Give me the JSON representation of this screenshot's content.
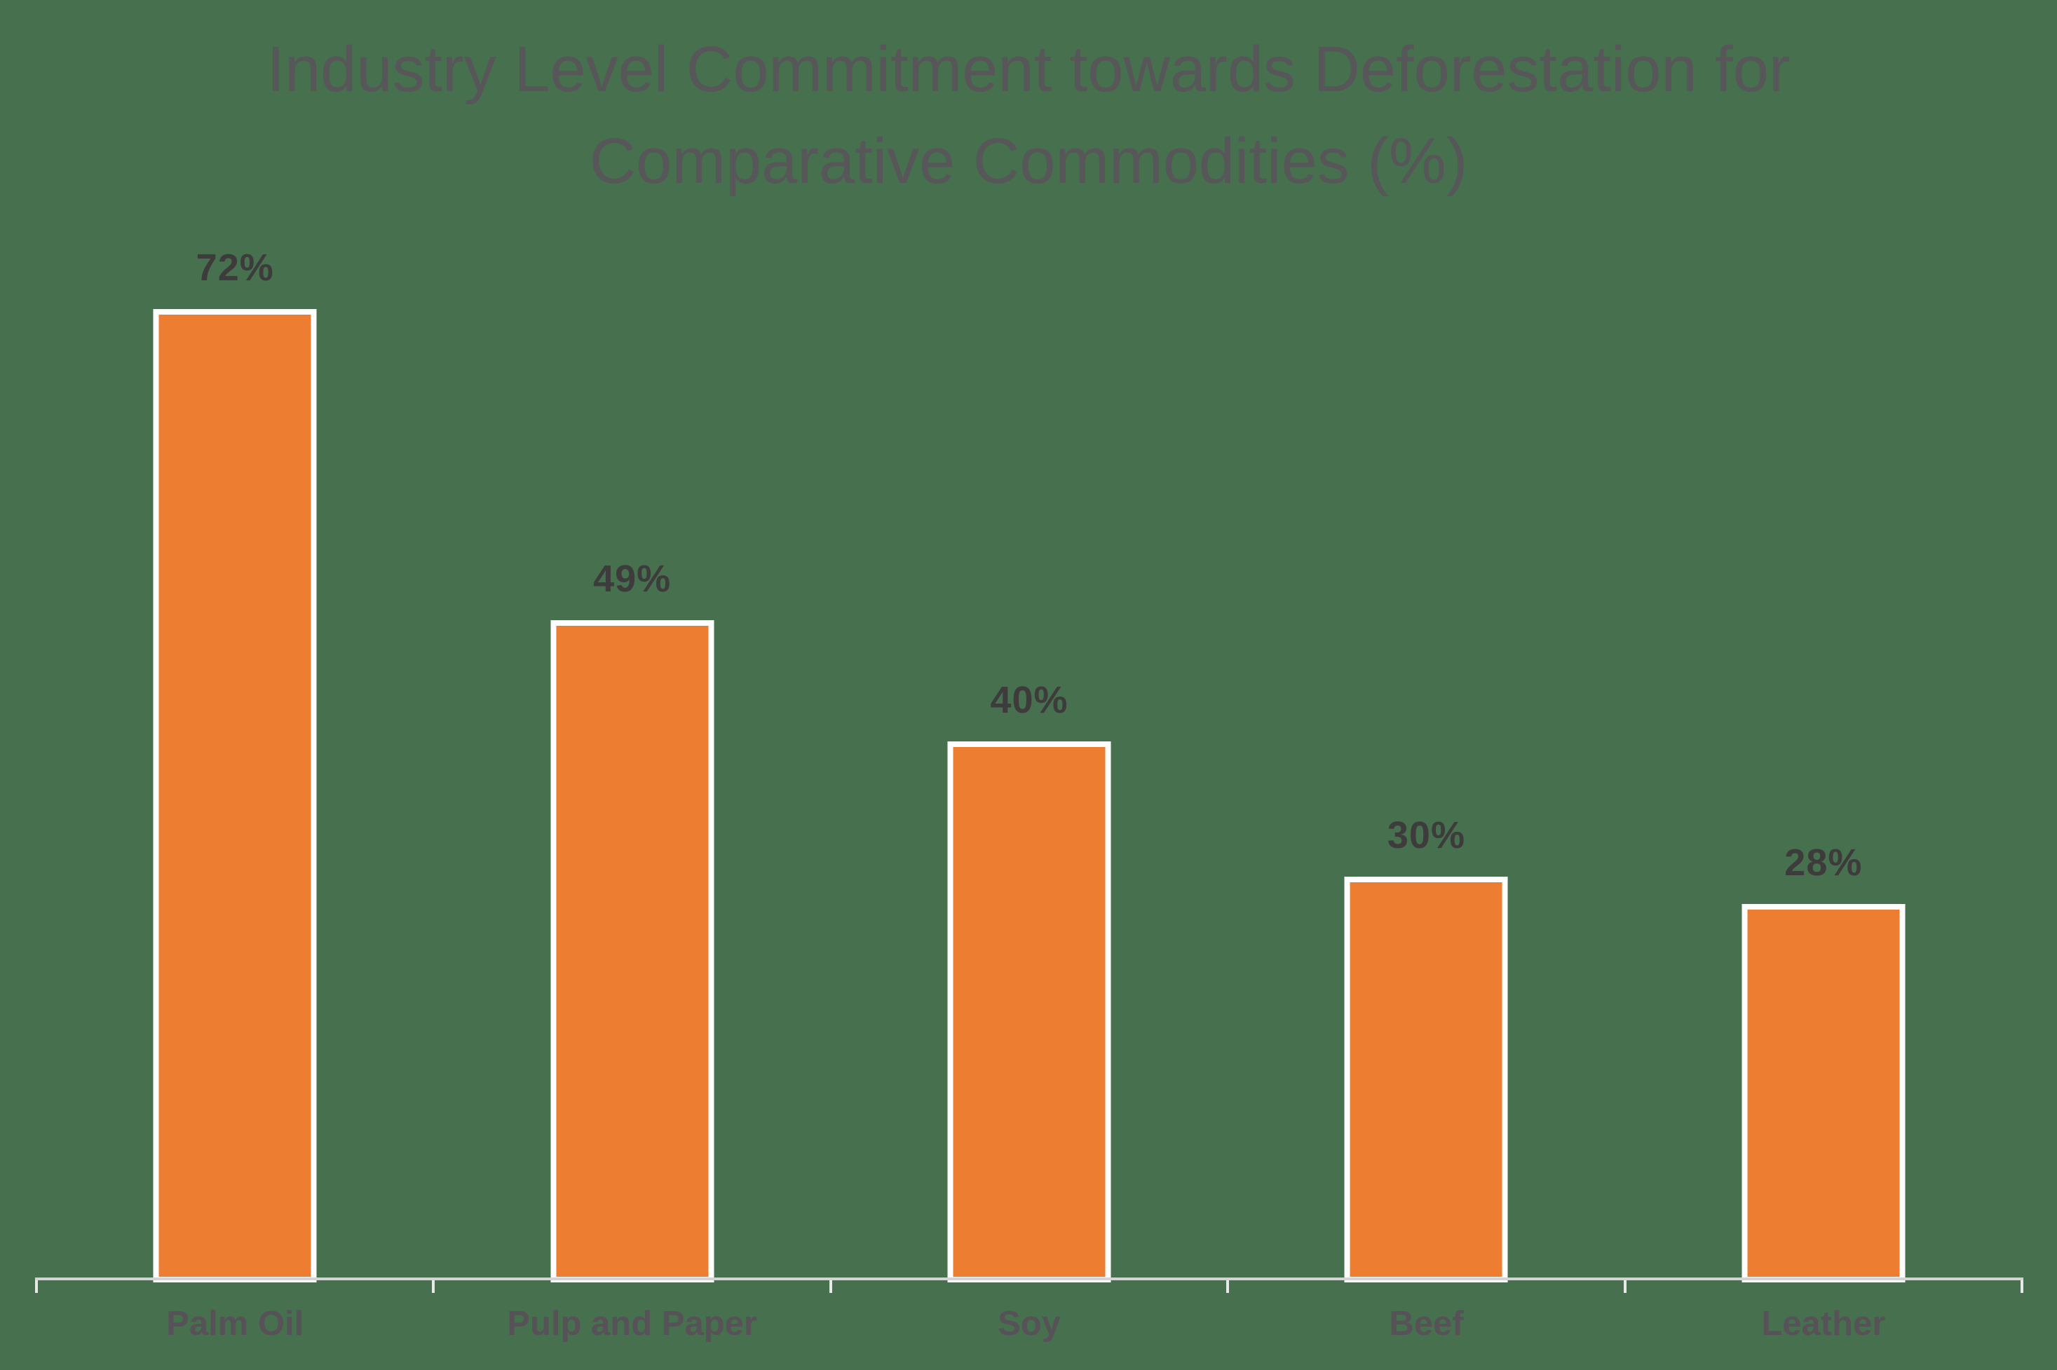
{
  "chart_data": {
    "type": "bar",
    "title": "Industry Level Commitment towards Deforestation for Comparative Commodities (%)",
    "title_lines": [
      "Industry Level Commitment towards Deforestation for",
      "Comparative Commodities (%)"
    ],
    "categories": [
      "Palm Oil",
      "Pulp and Paper",
      "Soy",
      "Beef",
      "Leather"
    ],
    "values": [
      72,
      49,
      40,
      30,
      28
    ],
    "value_labels": [
      "72%",
      "49%",
      "40%",
      "30%",
      "28%"
    ],
    "xlabel": "",
    "ylabel": "",
    "grid": false,
    "legend": "none",
    "colors": {
      "background": "#47704E",
      "bar_fill": "#ED7D31",
      "bar_border": "#FFFFFF",
      "title_text": "#575659",
      "axis_label_text": "#575158",
      "value_label_text": "#3D3B3C",
      "axis_line": "#D4D4D4",
      "tick": "#E8E8E8"
    }
  }
}
